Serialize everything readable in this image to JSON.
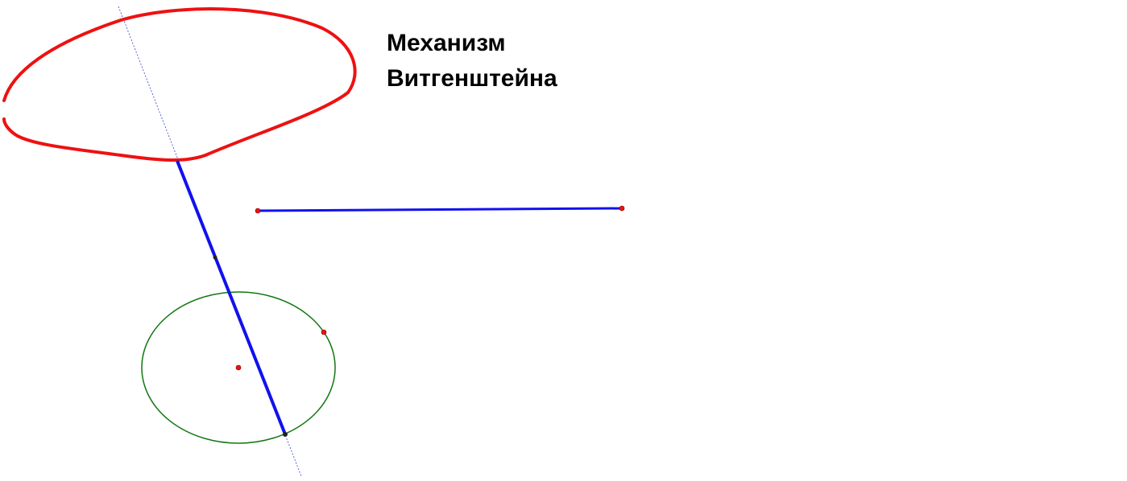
{
  "title": [
    "Механизм",
    "Витгенштейна"
  ]
}
